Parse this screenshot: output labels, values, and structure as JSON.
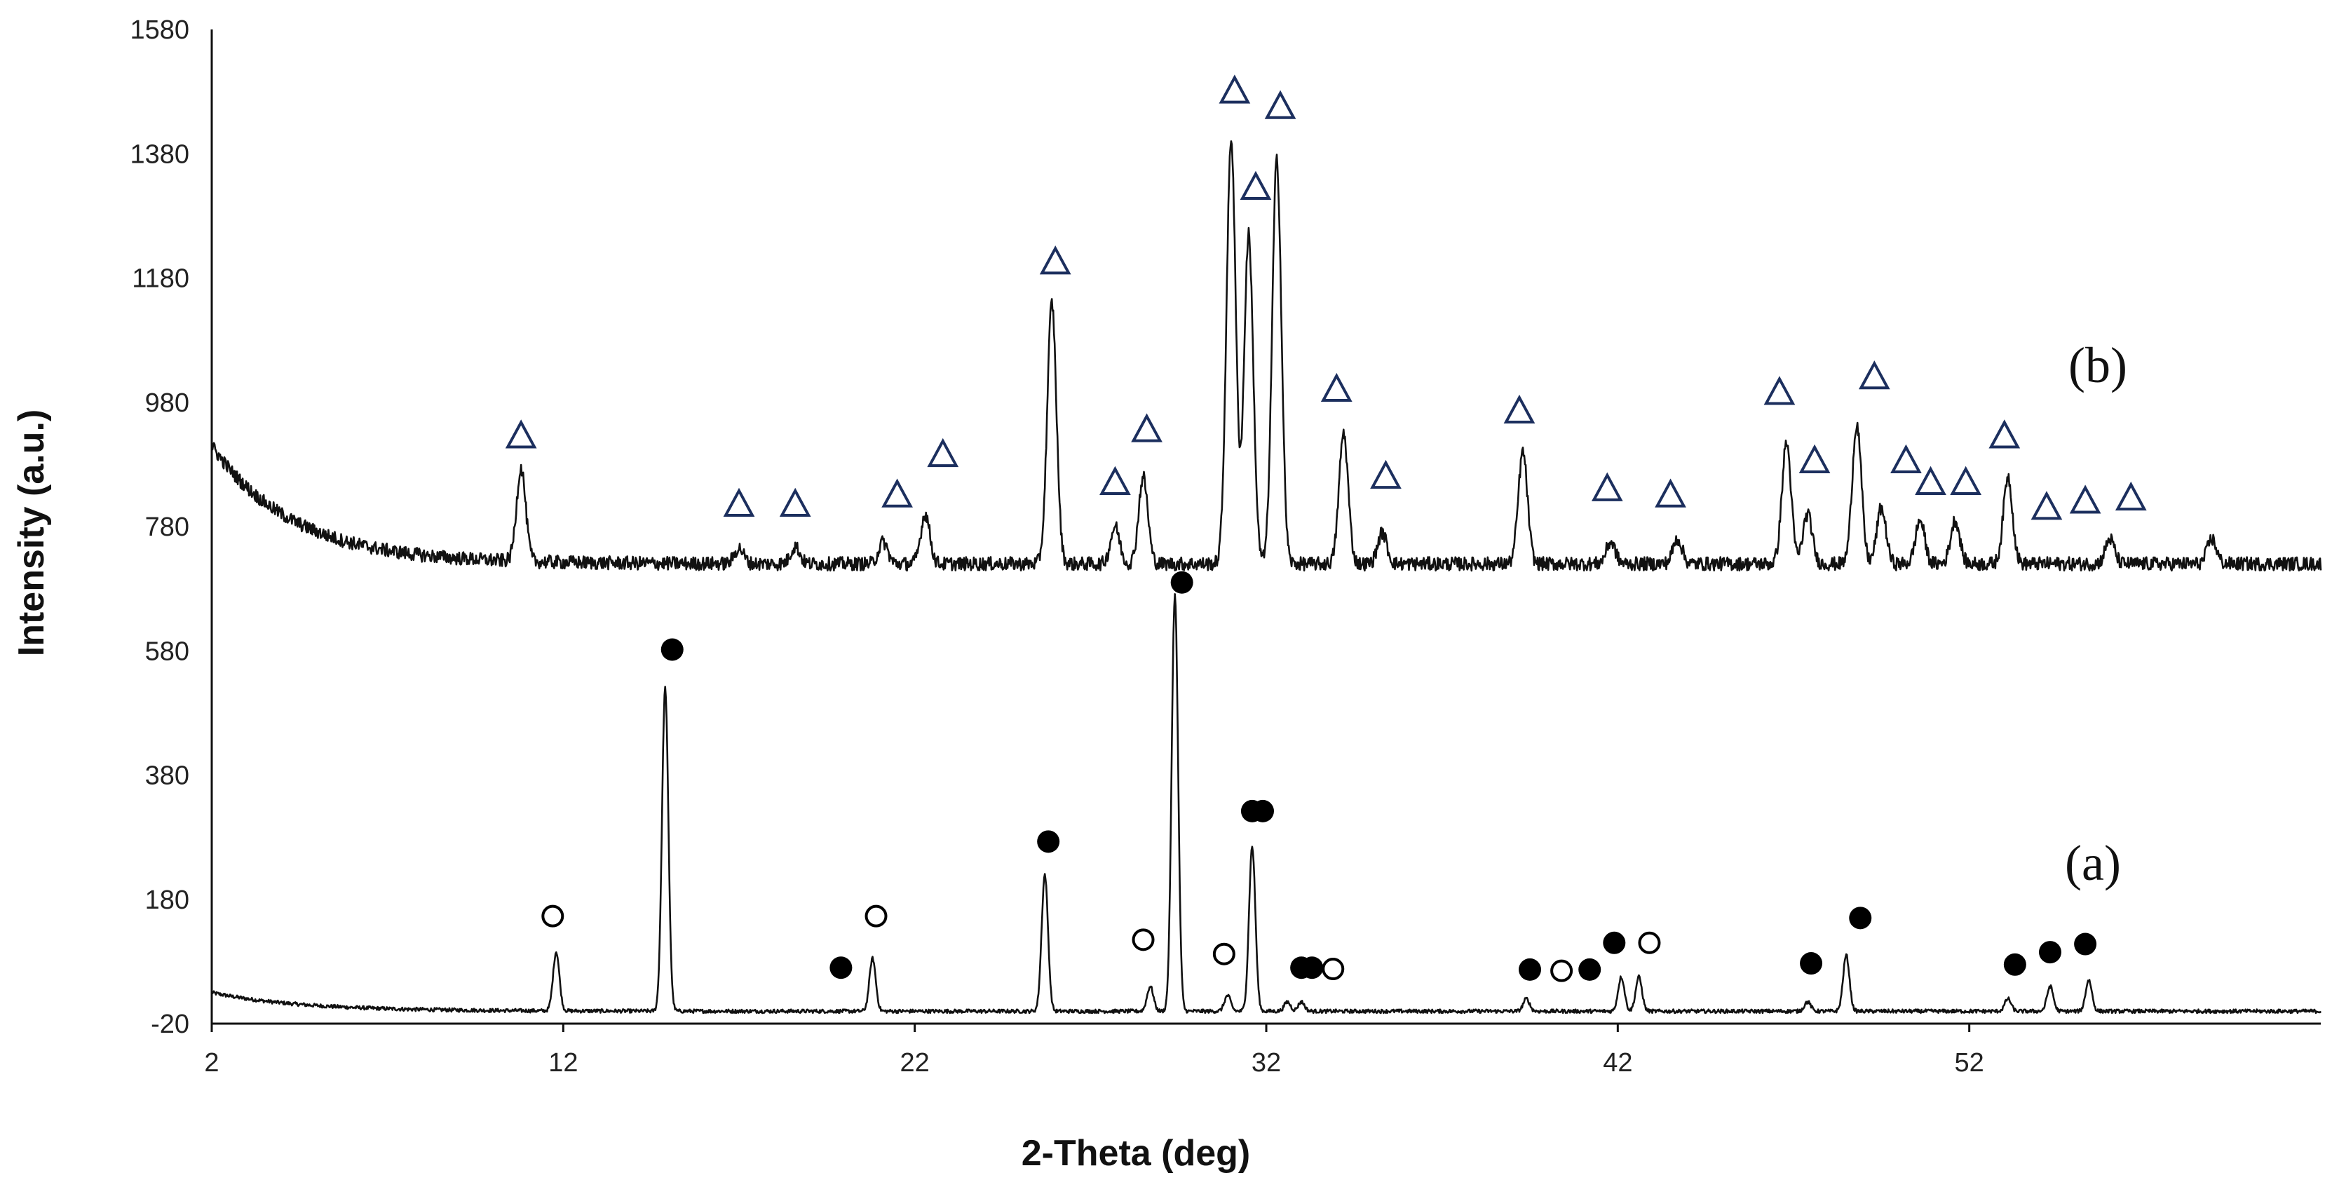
{
  "chart_data": {
    "type": "line",
    "title": "",
    "xlabel": "2-Theta (deg)",
    "ylabel": "Intensity (a.u.)",
    "xlim": [
      2,
      62
    ],
    "ylim": [
      -20,
      1580
    ],
    "x_ticks": [
      "2",
      "12",
      "22",
      "32",
      "42",
      "52"
    ],
    "y_ticks": [
      "-20",
      "180",
      "380",
      "580",
      "780",
      "980",
      "1180",
      "1380",
      "1580"
    ],
    "grid": false,
    "series": [
      {
        "name": "(a)",
        "baseline": 0,
        "peaks": [
          {
            "x": 11.8,
            "y": 95
          },
          {
            "x": 14.9,
            "y": 520
          },
          {
            "x": 20.8,
            "y": 85
          },
          {
            "x": 25.7,
            "y": 220
          },
          {
            "x": 28.7,
            "y": 40
          },
          {
            "x": 29.4,
            "y": 670
          },
          {
            "x": 30.9,
            "y": 25
          },
          {
            "x": 31.6,
            "y": 265
          },
          {
            "x": 32.6,
            "y": 15
          },
          {
            "x": 33.0,
            "y": 15
          },
          {
            "x": 39.4,
            "y": 20
          },
          {
            "x": 42.1,
            "y": 55
          },
          {
            "x": 42.6,
            "y": 55
          },
          {
            "x": 47.4,
            "y": 15
          },
          {
            "x": 48.5,
            "y": 90
          },
          {
            "x": 53.1,
            "y": 20
          },
          {
            "x": 54.3,
            "y": 40
          },
          {
            "x": 55.4,
            "y": 50
          }
        ]
      },
      {
        "name": "(b)",
        "baseline": 720,
        "peaks": [
          {
            "x": 10.8,
            "y": 870
          },
          {
            "x": 17.0,
            "y": 745
          },
          {
            "x": 18.6,
            "y": 748
          },
          {
            "x": 21.1,
            "y": 755
          },
          {
            "x": 22.3,
            "y": 800
          },
          {
            "x": 25.9,
            "y": 1140
          },
          {
            "x": 27.7,
            "y": 780
          },
          {
            "x": 28.5,
            "y": 860
          },
          {
            "x": 31.0,
            "y": 1405
          },
          {
            "x": 31.5,
            "y": 1250
          },
          {
            "x": 32.3,
            "y": 1370
          },
          {
            "x": 34.2,
            "y": 930
          },
          {
            "x": 35.3,
            "y": 770
          },
          {
            "x": 39.3,
            "y": 900
          },
          {
            "x": 41.8,
            "y": 755
          },
          {
            "x": 43.7,
            "y": 760
          },
          {
            "x": 46.8,
            "y": 915
          },
          {
            "x": 47.4,
            "y": 800
          },
          {
            "x": 48.8,
            "y": 945
          },
          {
            "x": 49.5,
            "y": 810
          },
          {
            "x": 50.6,
            "y": 790
          },
          {
            "x": 51.6,
            "y": 790
          },
          {
            "x": 53.1,
            "y": 860
          },
          {
            "x": 56.0,
            "y": 760
          },
          {
            "x": 58.9,
            "y": 760
          }
        ]
      }
    ],
    "markers": {
      "triangle": [
        {
          "x": 10.8,
          "y": 925
        },
        {
          "x": 17.0,
          "y": 815
        },
        {
          "x": 18.6,
          "y": 815
        },
        {
          "x": 21.5,
          "y": 830
        },
        {
          "x": 22.8,
          "y": 895
        },
        {
          "x": 26.0,
          "y": 1205
        },
        {
          "x": 27.7,
          "y": 850
        },
        {
          "x": 28.6,
          "y": 935
        },
        {
          "x": 31.1,
          "y": 1480
        },
        {
          "x": 31.7,
          "y": 1325
        },
        {
          "x": 32.4,
          "y": 1455
        },
        {
          "x": 34.0,
          "y": 1000
        },
        {
          "x": 35.4,
          "y": 860
        },
        {
          "x": 39.2,
          "y": 965
        },
        {
          "x": 41.7,
          "y": 840
        },
        {
          "x": 43.5,
          "y": 830
        },
        {
          "x": 46.6,
          "y": 995
        },
        {
          "x": 47.6,
          "y": 885
        },
        {
          "x": 49.3,
          "y": 1020
        },
        {
          "x": 50.2,
          "y": 885
        },
        {
          "x": 50.9,
          "y": 850
        },
        {
          "x": 51.9,
          "y": 850
        },
        {
          "x": 53.0,
          "y": 925
        },
        {
          "x": 54.2,
          "y": 810
        },
        {
          "x": 55.3,
          "y": 820
        },
        {
          "x": 56.6,
          "y": 825
        }
      ],
      "filled_circle": [
        {
          "x": 15.1,
          "y": 582
        },
        {
          "x": 19.9,
          "y": 70
        },
        {
          "x": 25.8,
          "y": 273
        },
        {
          "x": 29.6,
          "y": 690
        },
        {
          "x": 31.6,
          "y": 322
        },
        {
          "x": 31.9,
          "y": 322
        },
        {
          "x": 33.0,
          "y": 70
        },
        {
          "x": 33.3,
          "y": 70
        },
        {
          "x": 39.5,
          "y": 67
        },
        {
          "x": 41.2,
          "y": 67
        },
        {
          "x": 41.9,
          "y": 110
        },
        {
          "x": 47.5,
          "y": 77
        },
        {
          "x": 48.9,
          "y": 150
        },
        {
          "x": 53.3,
          "y": 75
        },
        {
          "x": 54.3,
          "y": 95
        },
        {
          "x": 55.3,
          "y": 108
        }
      ],
      "open_circle": [
        {
          "x": 11.7,
          "y": 153
        },
        {
          "x": 20.9,
          "y": 153
        },
        {
          "x": 28.5,
          "y": 115
        },
        {
          "x": 30.8,
          "y": 92
        },
        {
          "x": 33.9,
          "y": 68
        },
        {
          "x": 40.4,
          "y": 65
        },
        {
          "x": 42.9,
          "y": 110
        }
      ]
    },
    "annotations": [
      {
        "text": "(b)",
        "x": 57.3,
        "y": 990
      },
      {
        "text": "(a)",
        "x": 57.2,
        "y": 180
      }
    ]
  }
}
